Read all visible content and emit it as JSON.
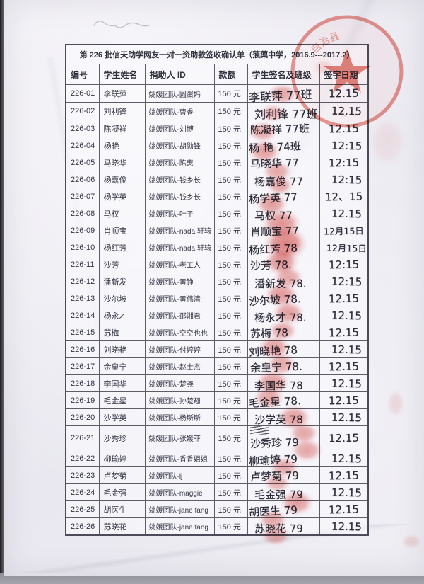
{
  "document": {
    "title": "第 226 批信天助学网友一对一资助款签收确认单（蒗蕖中学，2016.9---2017.2）"
  },
  "table": {
    "columns": [
      "编号",
      "学生姓名",
      "捐助人 ID",
      "款额",
      "学生签名及班级",
      "签字日期"
    ],
    "rows": [
      {
        "id": "226-01",
        "name": "李联萍",
        "donor": "姚媛团队-圆蛋妈",
        "amount": "150 元",
        "signature": "李联萍 77班",
        "date": "12.15",
        "crossed_out": false
      },
      {
        "id": "226-02",
        "name": "刘利锋",
        "donor": "姚媛团队-曹睿",
        "amount": "150 元",
        "signature": "刘利锋 77班",
        "date": "12.15",
        "crossed_out": false
      },
      {
        "id": "226-03",
        "name": "陈凝祥",
        "donor": "姚媛团队-刘博",
        "amount": "150 元",
        "signature": "陈凝祥 77班",
        "date": "12.15",
        "crossed_out": false
      },
      {
        "id": "226-04",
        "name": "杨艳",
        "donor": "姚媛团队-胡勋锋",
        "amount": "150 元",
        "signature": "杨 艳 74班",
        "date": "12:15",
        "crossed_out": false
      },
      {
        "id": "226-05",
        "name": "马晓华",
        "donor": "姚媛团队-陈惠",
        "amount": "150 元",
        "signature": "马晓华 77",
        "date": "12:15",
        "crossed_out": false
      },
      {
        "id": "226-06",
        "name": "杨嘉俊",
        "donor": "姚媛团队-钱乡长",
        "amount": "150 元",
        "signature": "杨嘉俊 77",
        "date": "12:15",
        "crossed_out": false
      },
      {
        "id": "226-07",
        "name": "杨学英",
        "donor": "姚媛团队-钱乡长",
        "amount": "150 元",
        "signature": "杨学英 77",
        "date": "12、15",
        "crossed_out": false
      },
      {
        "id": "226-08",
        "name": "马权",
        "donor": "姚媛团队-叶子",
        "amount": "150 元",
        "signature": "马权 77",
        "date": "12.15",
        "crossed_out": false
      },
      {
        "id": "226-09",
        "name": "肖顺宝",
        "donor": "姚媛团队-nada 轩辕",
        "amount": "150 元",
        "signature": "肖顺宝 77",
        "date": "12月15日",
        "crossed_out": false
      },
      {
        "id": "226-10",
        "name": "杨红芳",
        "donor": "姚媛团队-nada 轩辕",
        "amount": "150 元",
        "signature": "杨红芳 78",
        "date": "12月15日",
        "crossed_out": false
      },
      {
        "id": "226-11",
        "name": "沙芳",
        "donor": "姚媛团队-老工人",
        "amount": "150 元",
        "signature": "沙芳 78.",
        "date": "12:15",
        "crossed_out": false
      },
      {
        "id": "226-12",
        "name": "潘新发",
        "donor": "姚媛团队-黄铮",
        "amount": "150 元",
        "signature": "潘新发 78.",
        "date": "12:15",
        "crossed_out": false
      },
      {
        "id": "226-13",
        "name": "沙尔坡",
        "donor": "姚媛团队-黄伟清",
        "amount": "150 元",
        "signature": "沙尔坡 78.",
        "date": "12.15",
        "crossed_out": false
      },
      {
        "id": "226-14",
        "name": "杨永才",
        "donor": "姚媛团队-邵湘君",
        "amount": "150 元",
        "signature": "杨永才 78.",
        "date": "12.15",
        "crossed_out": false
      },
      {
        "id": "226-15",
        "name": "苏梅",
        "donor": "姚媛团队-空空也也",
        "amount": "150 元",
        "signature": "苏梅 78",
        "date": "12.15",
        "crossed_out": false
      },
      {
        "id": "226-16",
        "name": "刘晓艳",
        "donor": "姚媛团队-付婷婷",
        "amount": "150 元",
        "signature": "刘晓艳 78",
        "date": "12.15",
        "crossed_out": false
      },
      {
        "id": "226-17",
        "name": "余皇宁",
        "donor": "姚媛团队-赵士杰",
        "amount": "150 元",
        "signature": "余皇宁 78.",
        "date": "12.15",
        "crossed_out": false
      },
      {
        "id": "226-18",
        "name": "李国华",
        "donor": "姚媛团队-楚尧",
        "amount": "150 元",
        "signature": "李国华 78",
        "date": "12.15",
        "crossed_out": false
      },
      {
        "id": "226-19",
        "name": "毛金星",
        "donor": "姚媛团队-孙楚翘",
        "amount": "150 元",
        "signature": "毛金星 78.",
        "date": "12.15",
        "crossed_out": false
      },
      {
        "id": "226-20",
        "name": "沙学英",
        "donor": "姚媛团队-杨斯斯",
        "amount": "150 元",
        "signature": "沙学英 78",
        "date": "12.15",
        "crossed_out": false
      },
      {
        "id": "226-21",
        "name": "沙秀珍",
        "donor": "姚媛团队-张媛菲",
        "amount": "150 元",
        "signature": "沙秀珍 79",
        "date": "12.15",
        "crossed_out": true
      },
      {
        "id": "226-22",
        "name": "柳瑜婷",
        "donor": "姚媛团队-香香姐姐",
        "amount": "150 元",
        "signature": "柳瑜婷 79",
        "date": "12.15",
        "crossed_out": false
      },
      {
        "id": "226-23",
        "name": "卢梦菊",
        "donor": "姚媛团队-lj",
        "amount": "150 元",
        "signature": "卢梦菊 79",
        "date": "12.15",
        "crossed_out": false
      },
      {
        "id": "226-24",
        "name": "毛金强",
        "donor": "姚媛团队-maggie",
        "amount": "150 元",
        "signature": "毛金强 79",
        "date": "12.15",
        "crossed_out": false
      },
      {
        "id": "226-25",
        "name": "胡医生",
        "donor": "姚媛团队-jane fang",
        "amount": "150 元",
        "signature": "胡医生 79",
        "date": "12.15",
        "crossed_out": false
      },
      {
        "id": "226-26",
        "name": "苏晓花",
        "donor": "姚媛团队-jane fang",
        "amount": "150 元",
        "signature": "苏晓花 79",
        "date": "12.15",
        "crossed_out": false
      }
    ]
  },
  "stamp": {
    "visible_text": "自治县",
    "color": "#d8432e"
  },
  "ink": {
    "handwriting_color": "#2c2c38",
    "fingerprint_color": "#d22a24"
  }
}
